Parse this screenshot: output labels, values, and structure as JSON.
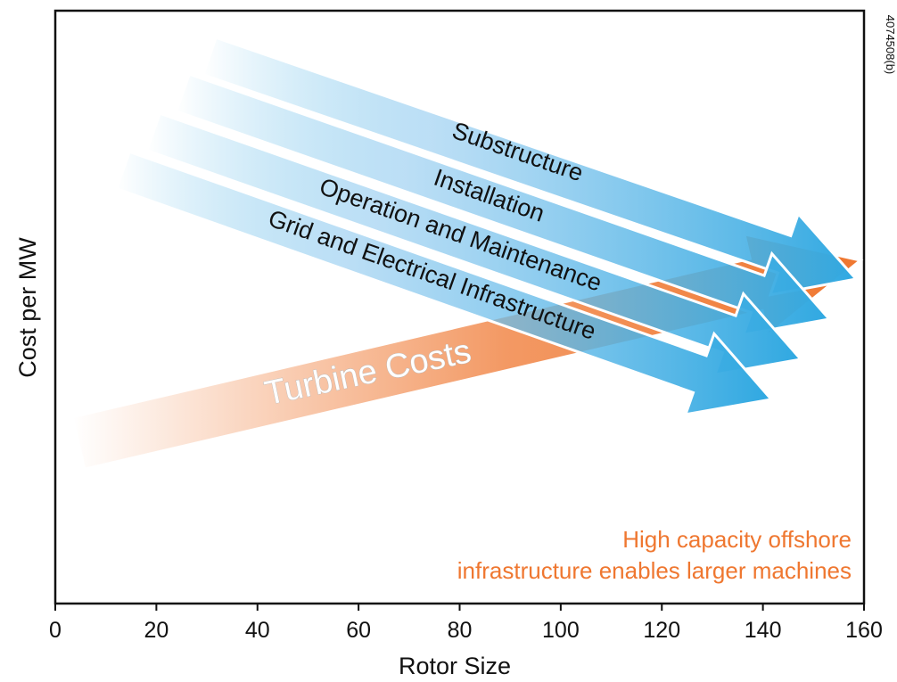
{
  "figure_id": "4074508(b)",
  "chart_data": {
    "type": "area",
    "xlabel": "Rotor Size",
    "ylabel": "Cost per MW",
    "xlim": [
      0,
      160
    ],
    "xticks": [
      "0",
      "20",
      "40",
      "60",
      "80",
      "100",
      "120",
      "140",
      "160"
    ],
    "yticks": [],
    "grid": false,
    "trend_arrows": [
      {
        "label": "Substructure",
        "direction": "decreasing",
        "color": "#2fa8e1",
        "x_start": 30,
        "x_end": 160
      },
      {
        "label": "Installation",
        "direction": "decreasing",
        "color": "#2fa8e1",
        "x_start": 25,
        "x_end": 155
      },
      {
        "label": "Operation and Maintenance",
        "direction": "decreasing",
        "color": "#2fa8e1",
        "x_start": 19,
        "x_end": 148
      },
      {
        "label": "Grid and Electrical Infrastructure",
        "direction": "decreasing",
        "color": "#2fa8e1",
        "x_start": 12,
        "x_end": 142
      },
      {
        "label": "Turbine Costs",
        "direction": "increasing",
        "color": "#ef7730",
        "x_start": 5,
        "x_end": 158
      }
    ],
    "annotation": {
      "lines": [
        "High capacity offshore",
        "infrastructure enables larger machines"
      ],
      "color": "#ef7730"
    }
  }
}
